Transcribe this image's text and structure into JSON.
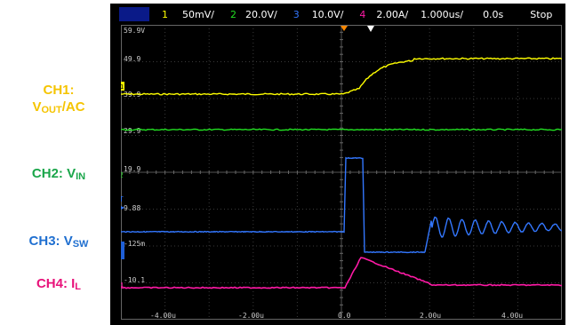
{
  "side_labels": {
    "ch1_line1": "CH1:",
    "ch1_v": "V",
    "ch1_sub": "OUT",
    "ch1_rest": "/AC",
    "ch2_main": "CH2: V",
    "ch2_sub": "IN",
    "ch3_main": "CH3: V",
    "ch3_sub": "SW",
    "ch4_main": "CH4: I",
    "ch4_sub": "L"
  },
  "top_bar": {
    "ch1_num": "1",
    "ch1_scale": "50mV/",
    "ch2_num": "2",
    "ch2_scale": "20.0V/",
    "ch3_num": "3",
    "ch3_scale": "10.0V/",
    "ch4_num": "4",
    "ch4_scale": "2.00A/",
    "timebase": "1.000us/",
    "delay": "0.0s",
    "run_state": "Stop"
  },
  "grid_labels": [
    "59.9V",
    "49.9",
    "39.9",
    "29.9",
    "19.9",
    "9.88",
    "-125m",
    "-10.1"
  ],
  "time_labels": [
    "-4.00u",
    "-2.00u",
    "0.0",
    "2.00u",
    "4.00u"
  ],
  "colors": {
    "ch1": "#ffff00",
    "ch2": "#22dd22",
    "ch3": "#3377ff",
    "ch4": "#ff1aa6",
    "trigger": "#ff8800",
    "label_ch1": "#f5c400",
    "label_ch2": "#1aa64a",
    "label_ch3": "#1f6fd0",
    "label_ch4": "#e8127a"
  }
}
